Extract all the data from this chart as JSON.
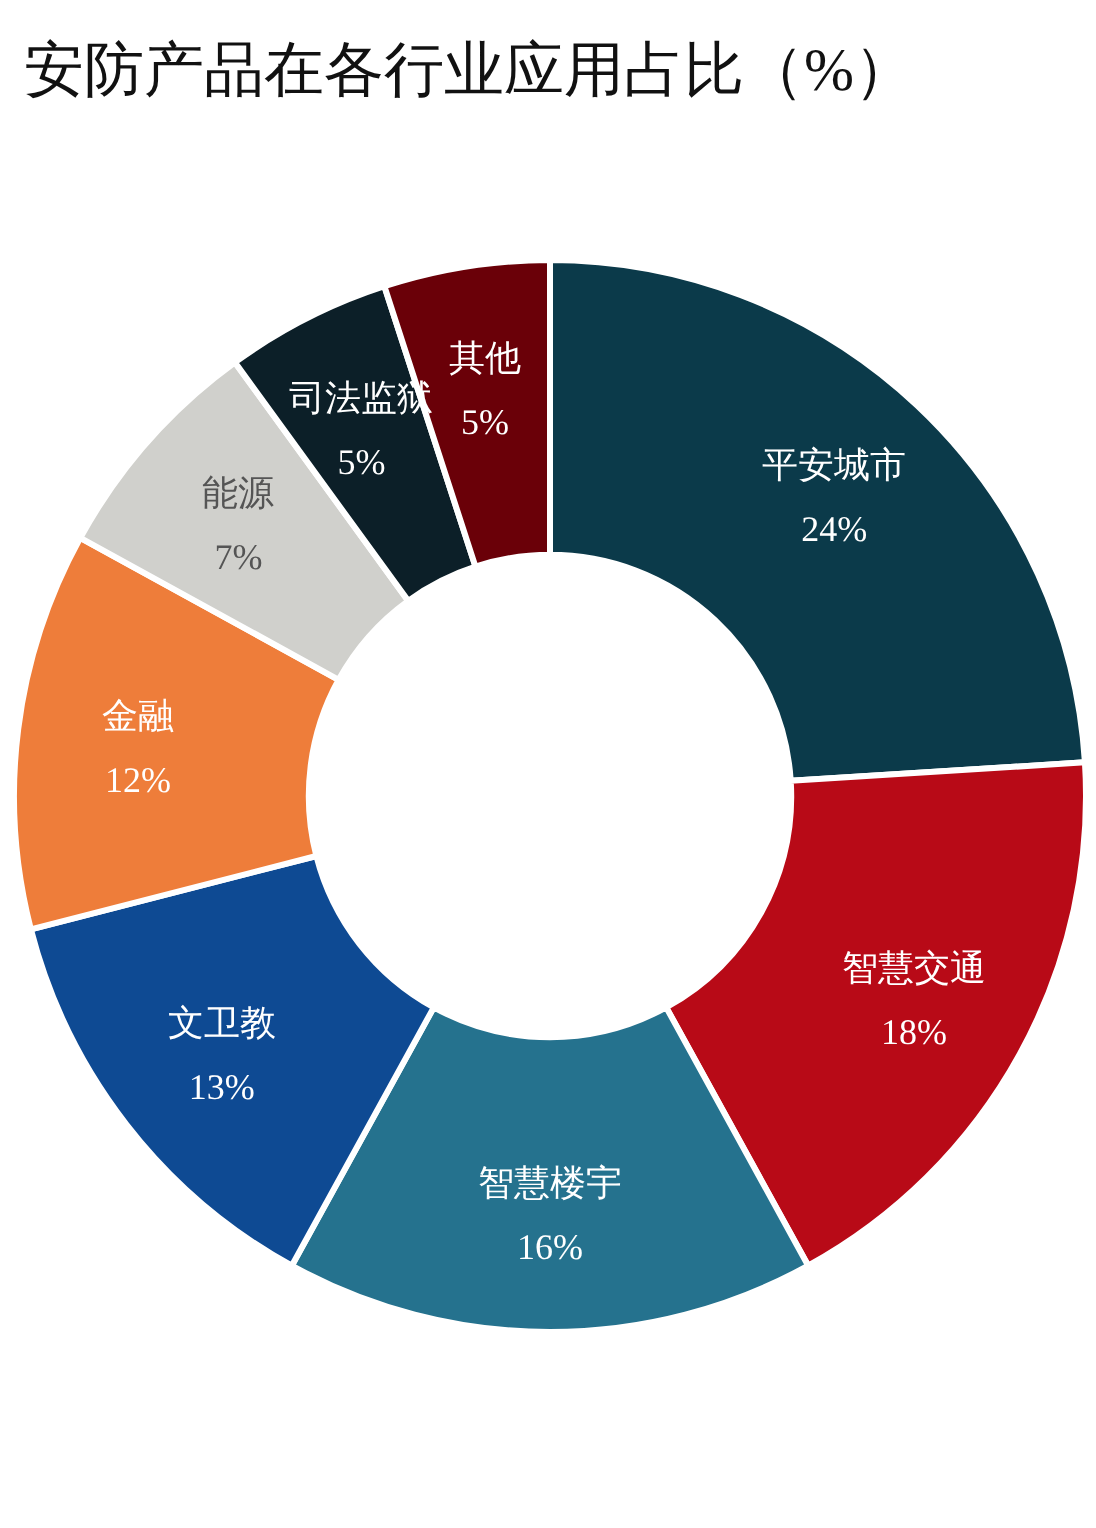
{
  "chart_data": {
    "type": "donut",
    "title": "安防产品在各行业应用占比（%）",
    "categories": [
      "平安城市",
      "智慧交通",
      "智慧楼宇",
      "文卫教",
      "金融",
      "能源",
      "司法监狱",
      "其他"
    ],
    "values": [
      24,
      18,
      16,
      13,
      12,
      7,
      5,
      5
    ],
    "value_labels": [
      "24%",
      "18%",
      "16%",
      "13%",
      "12%",
      "7%",
      "5%",
      "5%"
    ],
    "colors": [
      "#0b3a4a",
      "#b80a17",
      "#25728e",
      "#0e4a93",
      "#ee7d3a",
      "#d0d0cc",
      "#0c1f28",
      "#6a0008"
    ]
  }
}
